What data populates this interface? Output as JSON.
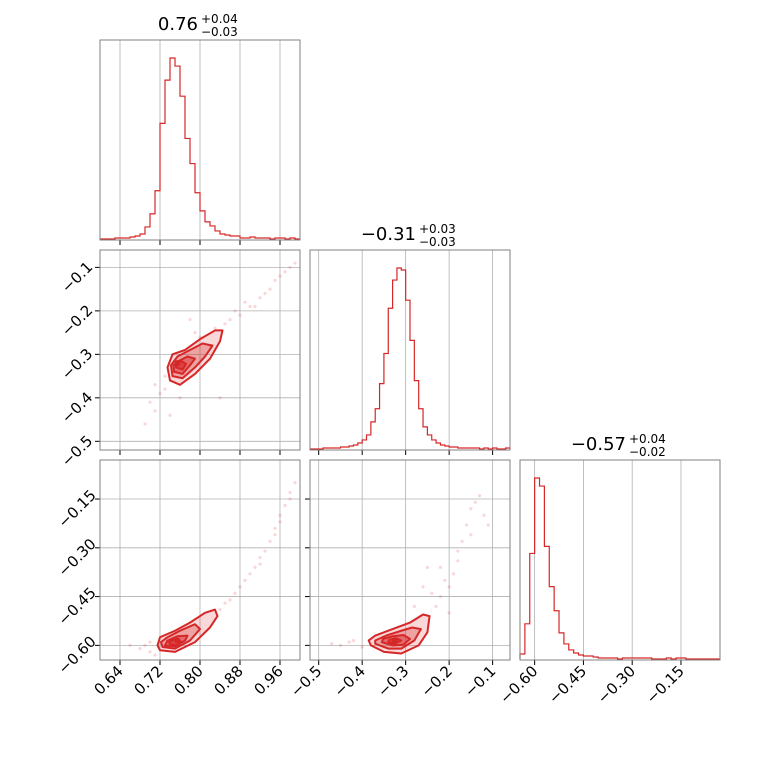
{
  "chart_data": {
    "type": "corner",
    "color": "#d62728",
    "titles": [
      {
        "value": "0.76",
        "plus": "+0.04",
        "minus": "−0.03"
      },
      {
        "value": "−0.31",
        "plus": "+0.03",
        "minus": "−0.03"
      },
      {
        "value": "−0.57",
        "plus": "+0.04",
        "minus": "−0.02"
      }
    ],
    "params": [
      {
        "range": [
          0.6,
          1.0
        ],
        "ticks": [
          0.64,
          0.72,
          0.8,
          0.88,
          0.96
        ],
        "tick_labels": [
          "0.64",
          "0.72",
          "0.80",
          "0.88",
          "0.96"
        ]
      },
      {
        "range": [
          -0.52,
          -0.06
        ],
        "ticks": [
          -0.5,
          -0.4,
          -0.3,
          -0.2,
          -0.1
        ],
        "tick_labels": [
          "−0.5",
          "−0.4",
          "−0.3",
          "−0.2",
          "−0.1"
        ]
      },
      {
        "range": [
          -0.645,
          -0.03
        ],
        "ticks": [
          -0.6,
          -0.45,
          -0.3,
          -0.15
        ],
        "tick_labels": [
          "−0.60",
          "−0.45",
          "−0.30",
          "−0.15"
        ]
      }
    ],
    "histograms": [
      {
        "param": 0,
        "edges": [
          0.6,
          0.61,
          0.62,
          0.63,
          0.64,
          0.65,
          0.66,
          0.67,
          0.68,
          0.69,
          0.7,
          0.71,
          0.72,
          0.73,
          0.74,
          0.75,
          0.76,
          0.77,
          0.78,
          0.79,
          0.8,
          0.81,
          0.82,
          0.83,
          0.84,
          0.85,
          0.86,
          0.87,
          0.88,
          0.89,
          0.9,
          0.91,
          0.92,
          0.93,
          0.94,
          0.95,
          0.96,
          0.97,
          0.98,
          0.99,
          1.0
        ],
        "counts": [
          0,
          0,
          0,
          1,
          1,
          1,
          2,
          3,
          5,
          12,
          25,
          48,
          115,
          158,
          180,
          172,
          142,
          100,
          75,
          46,
          28,
          17,
          13,
          8,
          5,
          4,
          3,
          3,
          1,
          1,
          2,
          1,
          1,
          1,
          0,
          1,
          1,
          0,
          1,
          0
        ]
      },
      {
        "param": 1,
        "edges": [
          -0.52,
          -0.51,
          -0.5,
          -0.49,
          -0.48,
          -0.47,
          -0.46,
          -0.45,
          -0.44,
          -0.43,
          -0.42,
          -0.41,
          -0.4,
          -0.39,
          -0.38,
          -0.37,
          -0.36,
          -0.35,
          -0.34,
          -0.33,
          -0.32,
          -0.31,
          -0.3,
          -0.29,
          -0.28,
          -0.27,
          -0.26,
          -0.25,
          -0.24,
          -0.23,
          -0.22,
          -0.21,
          -0.2,
          -0.19,
          -0.18,
          -0.17,
          -0.16,
          -0.15,
          -0.14,
          -0.13,
          -0.12,
          -0.11,
          -0.1,
          -0.09,
          -0.08,
          -0.07,
          -0.06
        ],
        "counts": [
          0,
          0,
          0,
          1,
          1,
          1,
          1,
          2,
          2,
          3,
          4,
          6,
          9,
          14,
          27,
          40,
          65,
          95,
          140,
          168,
          180,
          178,
          148,
          108,
          68,
          40,
          22,
          14,
          9,
          6,
          4,
          3,
          2,
          2,
          1,
          1,
          1,
          1,
          1,
          0,
          1,
          0,
          1,
          0,
          0,
          1
        ]
      },
      {
        "param": 2,
        "edges": [
          -0.645,
          -0.63,
          -0.615,
          -0.6,
          -0.585,
          -0.57,
          -0.555,
          -0.54,
          -0.525,
          -0.51,
          -0.495,
          -0.48,
          -0.465,
          -0.45,
          -0.435,
          -0.42,
          -0.405,
          -0.39,
          -0.375,
          -0.36,
          -0.345,
          -0.33,
          -0.315,
          -0.3,
          -0.285,
          -0.27,
          -0.255,
          -0.24,
          -0.225,
          -0.21,
          -0.195,
          -0.18,
          -0.165,
          -0.15,
          -0.135,
          -0.12,
          -0.105,
          -0.09,
          -0.075,
          -0.06,
          -0.045,
          -0.03
        ],
        "counts": [
          5,
          35,
          105,
          180,
          172,
          112,
          72,
          48,
          26,
          15,
          9,
          6,
          4,
          3,
          3,
          2,
          1,
          1,
          1,
          1,
          0,
          1,
          1,
          1,
          1,
          1,
          1,
          0,
          0,
          0,
          1,
          0,
          1,
          1,
          0,
          0,
          0,
          0,
          0,
          0,
          0
        ]
      }
    ],
    "pairs": [
      {
        "x_param": 0,
        "y_param": 1,
        "center": [
          0.755,
          -0.32
        ],
        "contours": [
          [
            [
              0.74,
              -0.36
            ],
            [
              0.76,
              -0.37
            ],
            [
              0.79,
              -0.345
            ],
            [
              0.82,
              -0.31
            ],
            [
              0.84,
              -0.27
            ],
            [
              0.845,
              -0.245
            ],
            [
              0.83,
              -0.245
            ],
            [
              0.8,
              -0.265
            ],
            [
              0.77,
              -0.29
            ],
            [
              0.745,
              -0.3
            ],
            [
              0.735,
              -0.33
            ]
          ],
          [
            [
              0.745,
              -0.35
            ],
            [
              0.765,
              -0.355
            ],
            [
              0.79,
              -0.33
            ],
            [
              0.81,
              -0.305
            ],
            [
              0.825,
              -0.28
            ],
            [
              0.805,
              -0.275
            ],
            [
              0.78,
              -0.29
            ],
            [
              0.755,
              -0.305
            ],
            [
              0.742,
              -0.325
            ]
          ],
          [
            [
              0.748,
              -0.34
            ],
            [
              0.765,
              -0.345
            ],
            [
              0.78,
              -0.325
            ],
            [
              0.79,
              -0.31
            ],
            [
              0.775,
              -0.305
            ],
            [
              0.758,
              -0.315
            ],
            [
              0.747,
              -0.325
            ]
          ],
          [
            [
              0.752,
              -0.33
            ],
            [
              0.765,
              -0.335
            ],
            [
              0.772,
              -0.322
            ],
            [
              0.762,
              -0.315
            ],
            [
              0.752,
              -0.32
            ]
          ]
        ],
        "points": [
          [
            0.72,
            -0.39
          ],
          [
            0.73,
            -0.38
          ],
          [
            0.71,
            -0.43
          ],
          [
            0.69,
            -0.46
          ],
          [
            0.7,
            -0.41
          ],
          [
            0.86,
            -0.22
          ],
          [
            0.88,
            -0.21
          ],
          [
            0.9,
            -0.19
          ],
          [
            0.92,
            -0.17
          ],
          [
            0.94,
            -0.15
          ],
          [
            0.96,
            -0.12
          ],
          [
            0.98,
            -0.1
          ],
          [
            0.99,
            -0.09
          ],
          [
            0.83,
            -0.24
          ],
          [
            0.85,
            -0.23
          ],
          [
            0.87,
            -0.2
          ],
          [
            0.91,
            -0.19
          ],
          [
            0.93,
            -0.16
          ],
          [
            0.95,
            -0.13
          ],
          [
            0.97,
            -0.11
          ],
          [
            0.84,
            -0.4
          ],
          [
            0.74,
            -0.44
          ],
          [
            0.76,
            -0.4
          ],
          [
            0.82,
            -0.28
          ],
          [
            0.8,
            -0.26
          ],
          [
            0.89,
            -0.18
          ],
          [
            0.73,
            -0.35
          ],
          [
            0.71,
            -0.37
          ],
          [
            0.78,
            -0.22
          ],
          [
            0.79,
            -0.25
          ]
        ]
      },
      {
        "x_param": 0,
        "y_param": 2,
        "center": [
          0.755,
          -0.585
        ],
        "contours": [
          [
            [
              0.72,
              -0.615
            ],
            [
              0.75,
              -0.62
            ],
            [
              0.79,
              -0.59
            ],
            [
              0.82,
              -0.545
            ],
            [
              0.835,
              -0.51
            ],
            [
              0.83,
              -0.49
            ],
            [
              0.81,
              -0.5
            ],
            [
              0.78,
              -0.53
            ],
            [
              0.75,
              -0.555
            ],
            [
              0.72,
              -0.575
            ],
            [
              0.715,
              -0.6
            ]
          ],
          [
            [
              0.725,
              -0.605
            ],
            [
              0.75,
              -0.61
            ],
            [
              0.78,
              -0.585
            ],
            [
              0.8,
              -0.55
            ],
            [
              0.79,
              -0.535
            ],
            [
              0.76,
              -0.555
            ],
            [
              0.735,
              -0.575
            ],
            [
              0.722,
              -0.59
            ]
          ],
          [
            [
              0.73,
              -0.6
            ],
            [
              0.75,
              -0.603
            ],
            [
              0.77,
              -0.585
            ],
            [
              0.775,
              -0.57
            ],
            [
              0.755,
              -0.572
            ],
            [
              0.735,
              -0.585
            ]
          ],
          [
            [
              0.74,
              -0.597
            ],
            [
              0.755,
              -0.6
            ],
            [
              0.762,
              -0.588
            ],
            [
              0.748,
              -0.582
            ],
            [
              0.738,
              -0.59
            ]
          ]
        ],
        "points": [
          [
            0.69,
            -0.6
          ],
          [
            0.68,
            -0.61
          ],
          [
            0.7,
            -0.62
          ],
          [
            0.71,
            -0.63
          ],
          [
            0.85,
            -0.47
          ],
          [
            0.87,
            -0.44
          ],
          [
            0.89,
            -0.4
          ],
          [
            0.91,
            -0.36
          ],
          [
            0.92,
            -0.33
          ],
          [
            0.94,
            -0.28
          ],
          [
            0.95,
            -0.24
          ],
          [
            0.96,
            -0.2
          ],
          [
            0.97,
            -0.17
          ],
          [
            0.98,
            -0.13
          ],
          [
            0.99,
            -0.1
          ],
          [
            0.86,
            -0.46
          ],
          [
            0.88,
            -0.42
          ],
          [
            0.9,
            -0.38
          ],
          [
            0.93,
            -0.31
          ],
          [
            0.96,
            -0.22
          ],
          [
            0.66,
            -0.6
          ],
          [
            0.7,
            -0.59
          ],
          [
            0.84,
            -0.49
          ],
          [
            0.92,
            -0.35
          ],
          [
            0.95,
            -0.26
          ],
          [
            0.98,
            -0.15
          ]
        ]
      },
      {
        "x_param": 1,
        "y_param": 2,
        "center": [
          -0.325,
          -0.585
        ],
        "contours": [
          [
            [
              -0.38,
              -0.6
            ],
            [
              -0.35,
              -0.62
            ],
            [
              -0.31,
              -0.625
            ],
            [
              -0.27,
              -0.6
            ],
            [
              -0.25,
              -0.56
            ],
            [
              -0.245,
              -0.51
            ],
            [
              -0.26,
              -0.505
            ],
            [
              -0.29,
              -0.53
            ],
            [
              -0.33,
              -0.55
            ],
            [
              -0.37,
              -0.57
            ],
            [
              -0.385,
              -0.585
            ]
          ],
          [
            [
              -0.37,
              -0.595
            ],
            [
              -0.34,
              -0.61
            ],
            [
              -0.31,
              -0.61
            ],
            [
              -0.28,
              -0.585
            ],
            [
              -0.265,
              -0.55
            ],
            [
              -0.285,
              -0.545
            ],
            [
              -0.31,
              -0.555
            ],
            [
              -0.345,
              -0.57
            ],
            [
              -0.37,
              -0.585
            ]
          ],
          [
            [
              -0.355,
              -0.59
            ],
            [
              -0.33,
              -0.6
            ],
            [
              -0.305,
              -0.598
            ],
            [
              -0.29,
              -0.58
            ],
            [
              -0.305,
              -0.568
            ],
            [
              -0.33,
              -0.572
            ],
            [
              -0.352,
              -0.58
            ]
          ],
          [
            [
              -0.34,
              -0.59
            ],
            [
              -0.325,
              -0.595
            ],
            [
              -0.31,
              -0.585
            ],
            [
              -0.322,
              -0.578
            ],
            [
              -0.338,
              -0.583
            ]
          ]
        ],
        "points": [
          [
            -0.43,
            -0.59
          ],
          [
            -0.45,
            -0.6
          ],
          [
            -0.47,
            -0.595
          ],
          [
            -0.4,
            -0.605
          ],
          [
            -0.42,
            -0.585
          ],
          [
            -0.22,
            -0.45
          ],
          [
            -0.2,
            -0.42
          ],
          [
            -0.19,
            -0.38
          ],
          [
            -0.18,
            -0.34
          ],
          [
            -0.17,
            -0.28
          ],
          [
            -0.16,
            -0.23
          ],
          [
            -0.15,
            -0.18
          ],
          [
            -0.14,
            -0.16
          ],
          [
            -0.13,
            -0.14
          ],
          [
            -0.23,
            -0.48
          ],
          [
            -0.21,
            -0.4
          ],
          [
            -0.24,
            -0.44
          ],
          [
            -0.25,
            -0.36
          ],
          [
            -0.18,
            -0.31
          ],
          [
            -0.2,
            -0.5
          ],
          [
            -0.28,
            -0.48
          ],
          [
            -0.26,
            -0.42
          ],
          [
            -0.15,
            -0.26
          ],
          [
            -0.12,
            -0.2
          ],
          [
            -0.11,
            -0.23
          ],
          [
            -0.22,
            -0.36
          ]
        ]
      }
    ]
  }
}
